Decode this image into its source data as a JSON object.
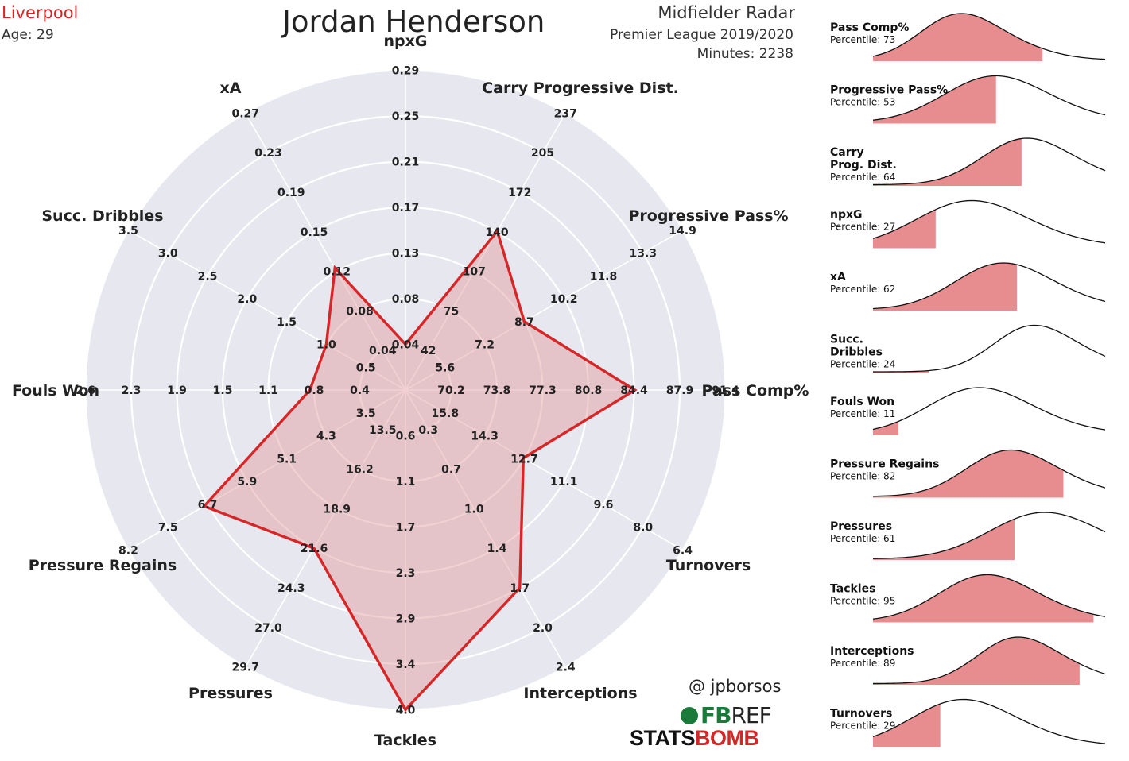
{
  "header": {
    "team": "Liverpool",
    "age": "Age: 29",
    "player": "Jordan Henderson",
    "radar_title": "Midfielder Radar",
    "competition": "Premier League 2019/2020",
    "minutes": "Minutes: 2238"
  },
  "footer": {
    "credit": "@ jpborsos",
    "fbref_fb": "FB",
    "fbref_ref": "REF",
    "statsbomb_a": "STATS",
    "statsbomb_b": "BOMB"
  },
  "colors": {
    "accent": "#d62728",
    "fill": "#e39a9c",
    "radar_bg": "#e6e7ef",
    "ring": "#ffffff"
  },
  "chart_data": [
    {
      "type": "radar",
      "axes": [
        {
          "label": "npxG",
          "ticks": [
            "0.04",
            "0.08",
            "0.13",
            "0.17",
            "0.21",
            "0.25",
            "0.29"
          ],
          "value": 0.04
        },
        {
          "label": "Carry Progressive Dist.",
          "ticks": [
            "42",
            "75",
            "107",
            "140",
            "172",
            "205",
            "237"
          ],
          "value": 140
        },
        {
          "label": "Progressive Pass%",
          "ticks": [
            "5.6",
            "7.2",
            "8.7",
            "10.2",
            "11.8",
            "13.3",
            "14.9"
          ],
          "value": 8.7
        },
        {
          "label": "Pass Comp%",
          "ticks": [
            "70.2",
            "73.8",
            "77.3",
            "80.8",
            "84.4",
            "87.9",
            "91.4"
          ],
          "value": 84.4
        },
        {
          "label": "Turnovers",
          "ticks": [
            "15.8",
            "14.3",
            "12.7",
            "11.1",
            "9.6",
            "8.0",
            "6.4"
          ],
          "value": 12.7
        },
        {
          "label": "Interceptions",
          "ticks": [
            "0.3",
            "0.7",
            "1.0",
            "1.4",
            "1.7",
            "2.0",
            "2.4"
          ],
          "value": 1.7
        },
        {
          "label": "Tackles",
          "ticks": [
            "0.6",
            "1.1",
            "1.7",
            "2.3",
            "2.9",
            "3.4",
            "4.0"
          ],
          "value": 4.0
        },
        {
          "label": "Pressures",
          "ticks": [
            "13.5",
            "16.2",
            "18.9",
            "21.6",
            "24.3",
            "27.0",
            "29.7"
          ],
          "value": 21.6
        },
        {
          "label": "Pressure Regains",
          "ticks": [
            "3.5",
            "4.3",
            "5.1",
            "5.9",
            "6.7",
            "7.5",
            "8.2"
          ],
          "value": 6.7
        },
        {
          "label": "Fouls Won",
          "ticks": [
            "0.4",
            "0.8",
            "1.1",
            "1.5",
            "1.9",
            "2.3",
            "2.6"
          ],
          "value": 0.8
        },
        {
          "label": "Succ. Dribbles",
          "ticks": [
            "0.5",
            "1.0",
            "1.5",
            "2.0",
            "2.5",
            "3.0",
            "3.5"
          ],
          "value": 1.0
        },
        {
          "label": "xA",
          "ticks": [
            "0.04",
            "0.08",
            "0.12",
            "0.15",
            "0.19",
            "0.23",
            "0.27"
          ],
          "value": 0.12
        }
      ]
    },
    {
      "type": "area",
      "panels": [
        {
          "name": [
            "Pass Comp%"
          ],
          "percentile": "Percentile: 73",
          "percentile_value": 73
        },
        {
          "name": [
            "Progressive Pass%"
          ],
          "percentile": "Percentile: 53",
          "percentile_value": 53
        },
        {
          "name": [
            "Carry",
            "Prog. Dist."
          ],
          "percentile": "Percentile: 64",
          "percentile_value": 64
        },
        {
          "name": [
            "npxG"
          ],
          "percentile": "Percentile: 27",
          "percentile_value": 27
        },
        {
          "name": [
            "xA"
          ],
          "percentile": "Percentile: 62",
          "percentile_value": 62
        },
        {
          "name": [
            "Succ.",
            "Dribbles"
          ],
          "percentile": "Percentile: 24",
          "percentile_value": 24
        },
        {
          "name": [
            "Fouls Won"
          ],
          "percentile": "Percentile: 11",
          "percentile_value": 11
        },
        {
          "name": [
            "Pressure Regains"
          ],
          "percentile": "Percentile: 82",
          "percentile_value": 82
        },
        {
          "name": [
            "Pressures"
          ],
          "percentile": "Percentile: 61",
          "percentile_value": 61
        },
        {
          "name": [
            "Tackles"
          ],
          "percentile": "Percentile: 95",
          "percentile_value": 95
        },
        {
          "name": [
            "Interceptions"
          ],
          "percentile": "Percentile: 89",
          "percentile_value": 89
        },
        {
          "name": [
            "Turnovers"
          ],
          "percentile": "Percentile: 29",
          "percentile_value": 29
        }
      ]
    }
  ]
}
